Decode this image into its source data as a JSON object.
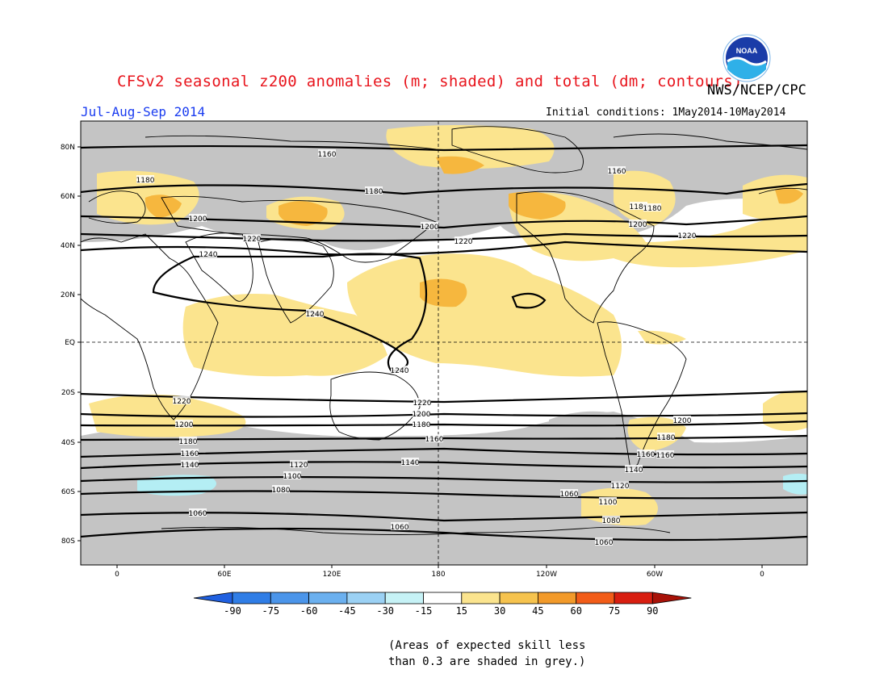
{
  "header": {
    "title": "CFSv2 seasonal z200 anomalies (m; shaded) and total (dm; contours)",
    "agency": "NWS/NCEP/CPC",
    "season": "Jul-Aug-Sep 2014",
    "initial_conditions": "Initial conditions: 1May2014-10May2014",
    "logo_text": "NOAA"
  },
  "map": {
    "lat_labels": [
      "80N",
      "60N",
      "40N",
      "20N",
      "EQ",
      "20S",
      "40S",
      "60S",
      "80S"
    ],
    "lon_labels": [
      "0",
      "60E",
      "120E",
      "180",
      "120W",
      "60W",
      "0"
    ],
    "contour_labels": [
      "1160",
      "1180",
      "1200",
      "1220",
      "1240",
      "1240",
      "1240",
      "1180",
      "1200",
      "1220",
      "1180",
      "1200",
      "1220",
      "1160",
      "1220",
      "1200",
      "1180",
      "1160",
      "1140",
      "1220",
      "1200",
      "1180",
      "1160",
      "1140",
      "1120",
      "1100",
      "1080",
      "1060",
      "1060",
      "1060",
      "1120",
      "1100",
      "1080",
      "1200",
      "1180",
      "1160",
      "1140",
      "1180",
      "1160",
      "1060"
    ],
    "colors": {
      "grey_skill": "#c4c4c4",
      "light_yellow": "#fbe48e",
      "orange": "#f6b73e",
      "light_cyan": "#b4eef4",
      "land_outline": "#000000"
    }
  },
  "colorbar": {
    "labels": [
      "-90",
      "-75",
      "-60",
      "-45",
      "-30",
      "-15",
      "15",
      "30",
      "45",
      "60",
      "75",
      "90"
    ],
    "colors": [
      "#2060e0",
      "#2f7de6",
      "#4b95ea",
      "#6bb0ef",
      "#9bd1f4",
      "#c6f2f6",
      "#ffffff",
      "#fbe48e",
      "#f6c34e",
      "#f29a2a",
      "#f25c18",
      "#d81e10",
      "#a81208"
    ]
  },
  "footnote": {
    "line1": "(Areas of expected skill less",
    "line2": "than 0.3 are shaded in grey.)"
  }
}
